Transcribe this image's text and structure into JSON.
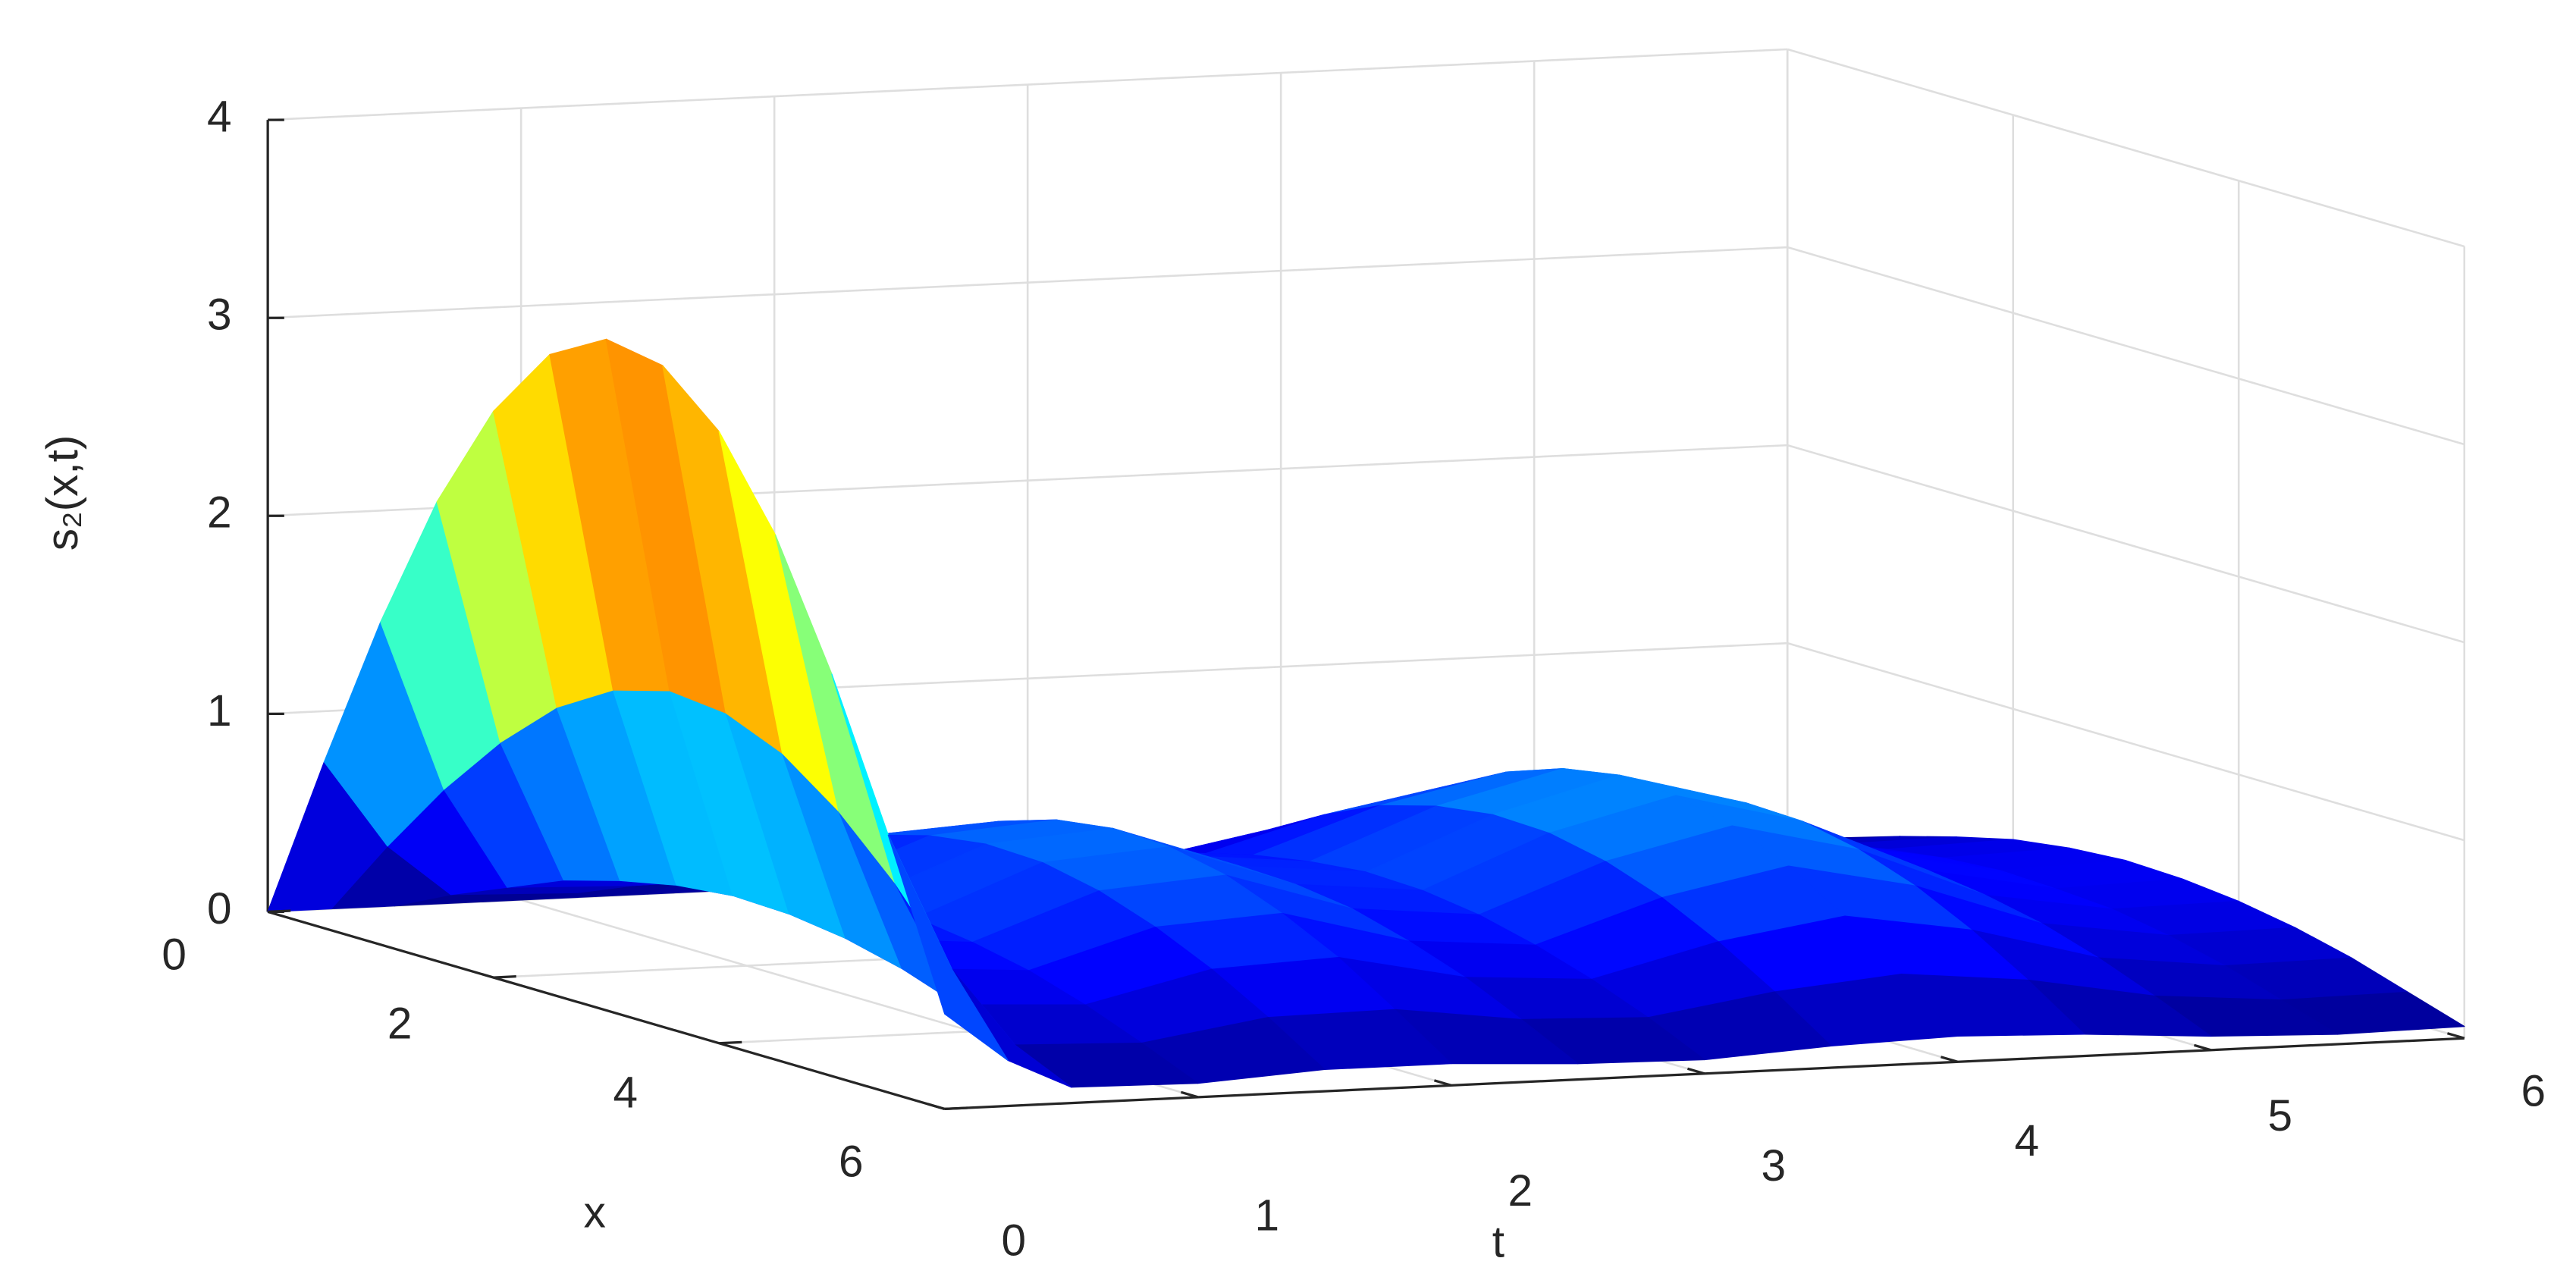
{
  "chart_data": {
    "type": "surface",
    "xlabel": "x",
    "tlabel": "t",
    "zlabel": "s₂(x,t)",
    "colormap": "jet",
    "grid": true,
    "x": [
      0,
      0.5,
      1,
      1.5,
      2,
      2.5,
      3,
      3.5,
      4,
      4.5,
      5,
      5.5,
      6
    ],
    "t": [
      0,
      0.25,
      0.5,
      1,
      1.5,
      2,
      2.5,
      3,
      3.5,
      4,
      4.5,
      5,
      5.5,
      6
    ],
    "z": [
      [
        0,
        0,
        0,
        0,
        0,
        0,
        0,
        0,
        0,
        0,
        0,
        0,
        0,
        0
      ],
      [
        0.84,
        0.4,
        0.14,
        0.12,
        0.19,
        0.2,
        0.14,
        0.13,
        0.19,
        0.23,
        0.19,
        0.12,
        0.09,
        0.1
      ],
      [
        1.63,
        0.77,
        0.26,
        0.24,
        0.36,
        0.38,
        0.28,
        0.25,
        0.37,
        0.46,
        0.37,
        0.24,
        0.18,
        0.19
      ],
      [
        2.32,
        1.09,
        0.38,
        0.34,
        0.51,
        0.55,
        0.4,
        0.35,
        0.53,
        0.65,
        0.53,
        0.34,
        0.26,
        0.27
      ],
      [
        2.86,
        1.35,
        0.46,
        0.42,
        0.63,
        0.67,
        0.49,
        0.44,
        0.66,
        0.8,
        0.66,
        0.42,
        0.32,
        0.34
      ],
      [
        3.23,
        1.52,
        0.52,
        0.47,
        0.71,
        0.76,
        0.55,
        0.49,
        0.74,
        0.9,
        0.74,
        0.47,
        0.36,
        0.38
      ],
      [
        3.39,
        1.6,
        0.55,
        0.5,
        0.75,
        0.8,
        0.58,
        0.52,
        0.78,
        0.95,
        0.78,
        0.5,
        0.38,
        0.4
      ],
      [
        3.34,
        1.57,
        0.54,
        0.49,
        0.74,
        0.79,
        0.57,
        0.51,
        0.77,
        0.93,
        0.77,
        0.49,
        0.37,
        0.39
      ],
      [
        3.09,
        1.45,
        0.5,
        0.45,
        0.68,
        0.73,
        0.53,
        0.47,
        0.71,
        0.86,
        0.71,
        0.45,
        0.35,
        0.36
      ],
      [
        2.65,
        1.24,
        0.43,
        0.39,
        0.58,
        0.62,
        0.45,
        0.4,
        0.61,
        0.74,
        0.61,
        0.39,
        0.3,
        0.31
      ],
      [
        2.03,
        0.96,
        0.33,
        0.3,
        0.45,
        0.48,
        0.35,
        0.31,
        0.47,
        0.57,
        0.47,
        0.3,
        0.23,
        0.24
      ],
      [
        1.3,
        0.61,
        0.21,
        0.19,
        0.29,
        0.3,
        0.22,
        0.2,
        0.3,
        0.36,
        0.3,
        0.19,
        0.14,
        0.15
      ],
      [
        0.48,
        0.23,
        0.08,
        0.07,
        0.11,
        0.11,
        0.08,
        0.07,
        0.11,
        0.13,
        0.11,
        0.07,
        0.05,
        0.06
      ]
    ],
    "xlim": [
      0,
      6
    ],
    "tlim": [
      0,
      6
    ],
    "zlim": [
      0,
      4
    ],
    "xticks": [
      0,
      2,
      4,
      6
    ],
    "tticks": [
      0,
      1,
      2,
      3,
      4,
      5,
      6
    ],
    "zticks": [
      0,
      1,
      2,
      3,
      4
    ]
  }
}
